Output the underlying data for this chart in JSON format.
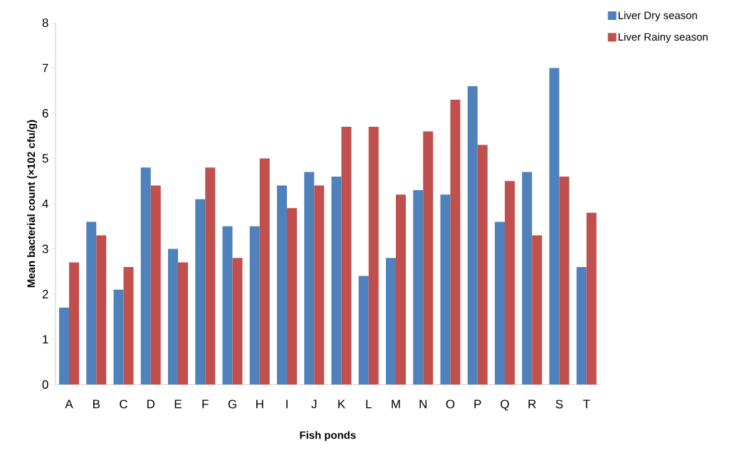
{
  "chart_data": {
    "type": "bar",
    "xlabel": "Fish ponds",
    "ylabel": "Mean bacterial count (×102 cfu/g)",
    "categories": [
      "A",
      "B",
      "C",
      "D",
      "E",
      "F",
      "G",
      "H",
      "I",
      "J",
      "K",
      "L",
      "M",
      "N",
      "O",
      "P",
      "Q",
      "R",
      "S",
      "T"
    ],
    "series": [
      {
        "name": "Liver Dry season",
        "color": "#4f81bd",
        "values": [
          1.7,
          3.6,
          2.1,
          4.8,
          3.0,
          4.1,
          3.5,
          3.5,
          4.4,
          4.7,
          4.6,
          2.4,
          2.8,
          4.3,
          4.2,
          6.6,
          3.6,
          4.7,
          7.0,
          2.6
        ]
      },
      {
        "name": "Liver Rainy season",
        "color": "#c0504d",
        "values": [
          2.7,
          3.3,
          2.6,
          4.4,
          2.7,
          4.8,
          2.8,
          5.0,
          3.9,
          4.4,
          5.7,
          5.7,
          4.2,
          5.6,
          6.3,
          5.3,
          4.5,
          3.3,
          4.6,
          3.8
        ]
      }
    ],
    "ylim": [
      0,
      8
    ],
    "yticks": [
      0,
      1,
      2,
      3,
      4,
      5,
      6,
      7,
      8
    ],
    "legend": "top right"
  }
}
